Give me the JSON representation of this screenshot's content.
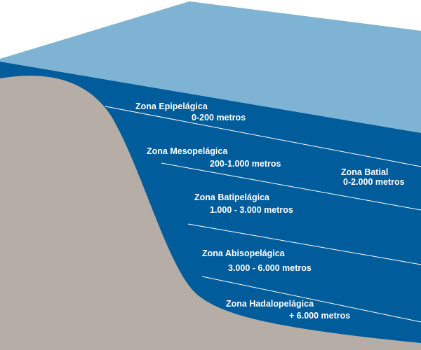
{
  "zones": [
    {
      "name": "Zona Epipelágica",
      "depth": "0-200 metros"
    },
    {
      "name": "Zona Mesopelágica",
      "depth": "200-1.000 metros"
    },
    {
      "name": "Zona Batipelágica",
      "depth": "1.000 - 3.000 metros"
    },
    {
      "name": "Zona Abisopelágica",
      "depth": "3.000 - 6.000 metros"
    },
    {
      "name": "Zona Hadalopelágica",
      "depth": "+ 6.000 metros"
    }
  ],
  "batial": {
    "name": "Zona Batial",
    "depth": "0-2.000 metros"
  }
}
